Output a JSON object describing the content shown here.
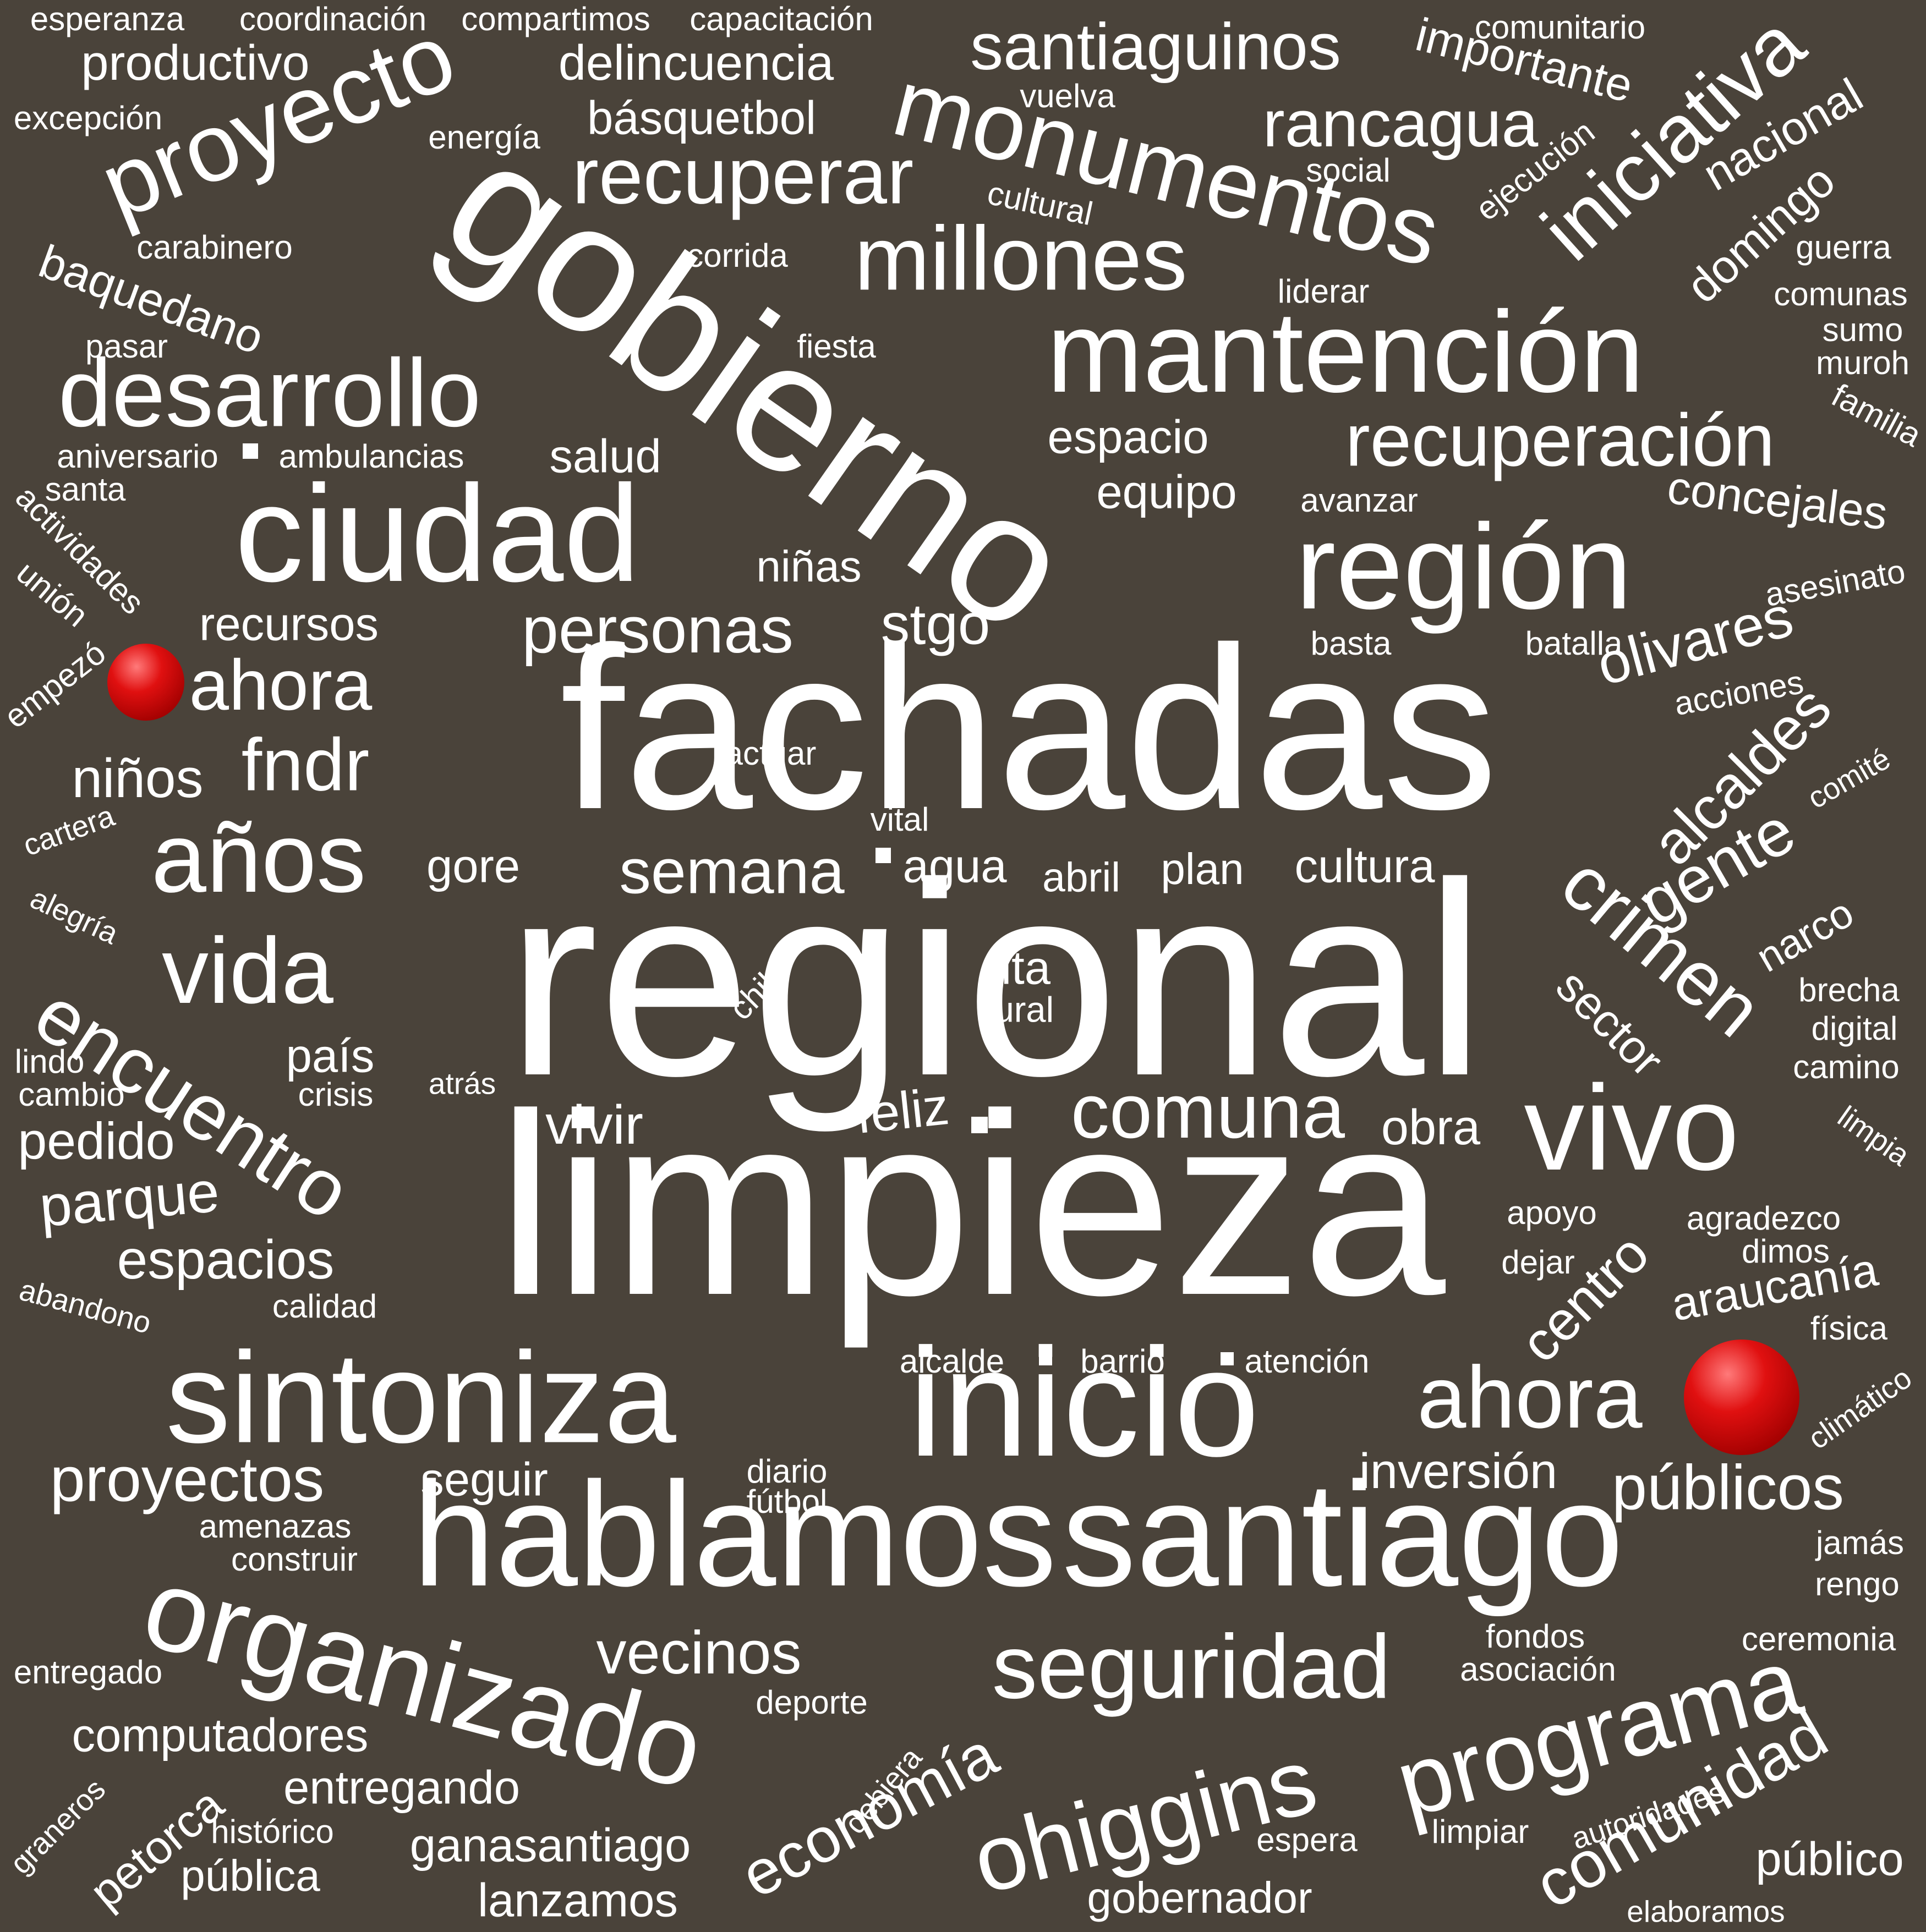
{
  "colors": {
    "background": "#4a433a",
    "text": "#ffffff",
    "dot": "#cc0000"
  },
  "words": [
    {
      "text": "regional"
    },
    {
      "text": "limpieza"
    },
    {
      "text": "fachadas"
    },
    {
      "text": "gobierno"
    },
    {
      "text": "hablamos"
    },
    {
      "text": "santiago"
    },
    {
      "text": "inicio"
    },
    {
      "text": "mantención"
    },
    {
      "text": "monumentos"
    },
    {
      "text": "ciudad"
    },
    {
      "text": "región"
    },
    {
      "text": "sintoniza"
    },
    {
      "text": "organizado"
    },
    {
      "text": "vivo"
    },
    {
      "text": "proyecto"
    },
    {
      "text": "programa"
    },
    {
      "text": "ohiggins"
    },
    {
      "text": "seguridad"
    },
    {
      "text": "desarrollo"
    },
    {
      "text": "millones"
    },
    {
      "text": "recuperación"
    },
    {
      "text": "años"
    },
    {
      "text": "vida"
    },
    {
      "text": "encuentro"
    },
    {
      "text": "recuperar"
    },
    {
      "text": "iniciativa"
    },
    {
      "text": "santiaguinos"
    },
    {
      "text": "rancagua"
    },
    {
      "text": "ahora"
    },
    {
      "text": "ahora"
    },
    {
      "text": "crimen"
    },
    {
      "text": "comuna"
    },
    {
      "text": "personas"
    },
    {
      "text": "semana"
    },
    {
      "text": "alcaldes"
    },
    {
      "text": "olivares"
    },
    {
      "text": "gente"
    },
    {
      "text": "públicos"
    },
    {
      "text": "comunidad"
    },
    {
      "text": "economía"
    },
    {
      "text": "proyectos"
    },
    {
      "text": "vecinos"
    },
    {
      "text": "fndr"
    },
    {
      "text": "productivo"
    },
    {
      "text": "delincuencia"
    },
    {
      "text": "importante"
    },
    {
      "text": "básquetbol"
    },
    {
      "text": "nacional"
    },
    {
      "text": "baquedano"
    },
    {
      "text": "domingo"
    },
    {
      "text": "stgo"
    },
    {
      "text": "concejales"
    },
    {
      "text": "niños"
    },
    {
      "text": "centro"
    },
    {
      "text": "araucanía"
    },
    {
      "text": "parque"
    },
    {
      "text": "espacios"
    },
    {
      "text": "recursos"
    },
    {
      "text": "espacio"
    },
    {
      "text": "equipo"
    },
    {
      "text": "salud"
    },
    {
      "text": "niñas"
    },
    {
      "text": "país"
    },
    {
      "text": "pedido"
    },
    {
      "text": "vivir"
    },
    {
      "text": "feliz"
    },
    {
      "text": "obra"
    },
    {
      "text": "sector"
    },
    {
      "text": "narco"
    },
    {
      "text": "inversión"
    },
    {
      "text": "público"
    },
    {
      "text": "computadores"
    },
    {
      "text": "entregando"
    },
    {
      "text": "ganasantiago"
    },
    {
      "text": "lanzamos"
    },
    {
      "text": "pública"
    },
    {
      "text": "gobernador"
    },
    {
      "text": "petorca"
    },
    {
      "text": "seguir"
    },
    {
      "text": "gore"
    },
    {
      "text": "agua"
    },
    {
      "text": "abril"
    },
    {
      "text": "plan"
    },
    {
      "text": "cultura"
    },
    {
      "text": "rita"
    },
    {
      "text": "rural"
    },
    {
      "text": "esperanza"
    },
    {
      "text": "coordinación"
    },
    {
      "text": "compartimos"
    },
    {
      "text": "capacitación"
    },
    {
      "text": "comunitario"
    },
    {
      "text": "excepción"
    },
    {
      "text": "energía"
    },
    {
      "text": "vuelva"
    },
    {
      "text": "social"
    },
    {
      "text": "ejecución"
    },
    {
      "text": "cultural"
    },
    {
      "text": "carabinero"
    },
    {
      "text": "corrida"
    },
    {
      "text": "guerra"
    },
    {
      "text": "comunas"
    },
    {
      "text": "liderar"
    },
    {
      "text": "sumo"
    },
    {
      "text": "muroh"
    },
    {
      "text": "pasar"
    },
    {
      "text": "fiesta"
    },
    {
      "text": "familia"
    },
    {
      "text": "aniversario"
    },
    {
      "text": "ambulancias"
    },
    {
      "text": "santa"
    },
    {
      "text": "avanzar"
    },
    {
      "text": "actividades"
    },
    {
      "text": "unión"
    },
    {
      "text": "asesinato"
    },
    {
      "text": "basta"
    },
    {
      "text": "batalla"
    },
    {
      "text": "empezó"
    },
    {
      "text": "acciones"
    },
    {
      "text": "actuar"
    },
    {
      "text": "comité"
    },
    {
      "text": "cartera"
    },
    {
      "text": "vital"
    },
    {
      "text": "alegría"
    },
    {
      "text": "chile"
    },
    {
      "text": "brecha"
    },
    {
      "text": "digital"
    },
    {
      "text": "camino"
    },
    {
      "text": "lindo"
    },
    {
      "text": "cambio"
    },
    {
      "text": "crisis"
    },
    {
      "text": "atrás"
    },
    {
      "text": "limpia"
    },
    {
      "text": "apoyo"
    },
    {
      "text": "agradezco"
    },
    {
      "text": "dimos"
    },
    {
      "text": "dejar"
    },
    {
      "text": "abandono"
    },
    {
      "text": "calidad"
    },
    {
      "text": "física"
    },
    {
      "text": "alcalde"
    },
    {
      "text": "barrio"
    },
    {
      "text": "atención"
    },
    {
      "text": "climático"
    },
    {
      "text": "diario"
    },
    {
      "text": "fútbol"
    },
    {
      "text": "amenazas"
    },
    {
      "text": "construir"
    },
    {
      "text": "jamás"
    },
    {
      "text": "rengo"
    },
    {
      "text": "fondos"
    },
    {
      "text": "asociación"
    },
    {
      "text": "ceremonia"
    },
    {
      "text": "entregado"
    },
    {
      "text": "deporte"
    },
    {
      "text": "debiera"
    },
    {
      "text": "autoridades"
    },
    {
      "text": "graneros"
    },
    {
      "text": "histórico"
    },
    {
      "text": "espera"
    },
    {
      "text": "limpiar"
    },
    {
      "text": "elaboramos"
    }
  ]
}
